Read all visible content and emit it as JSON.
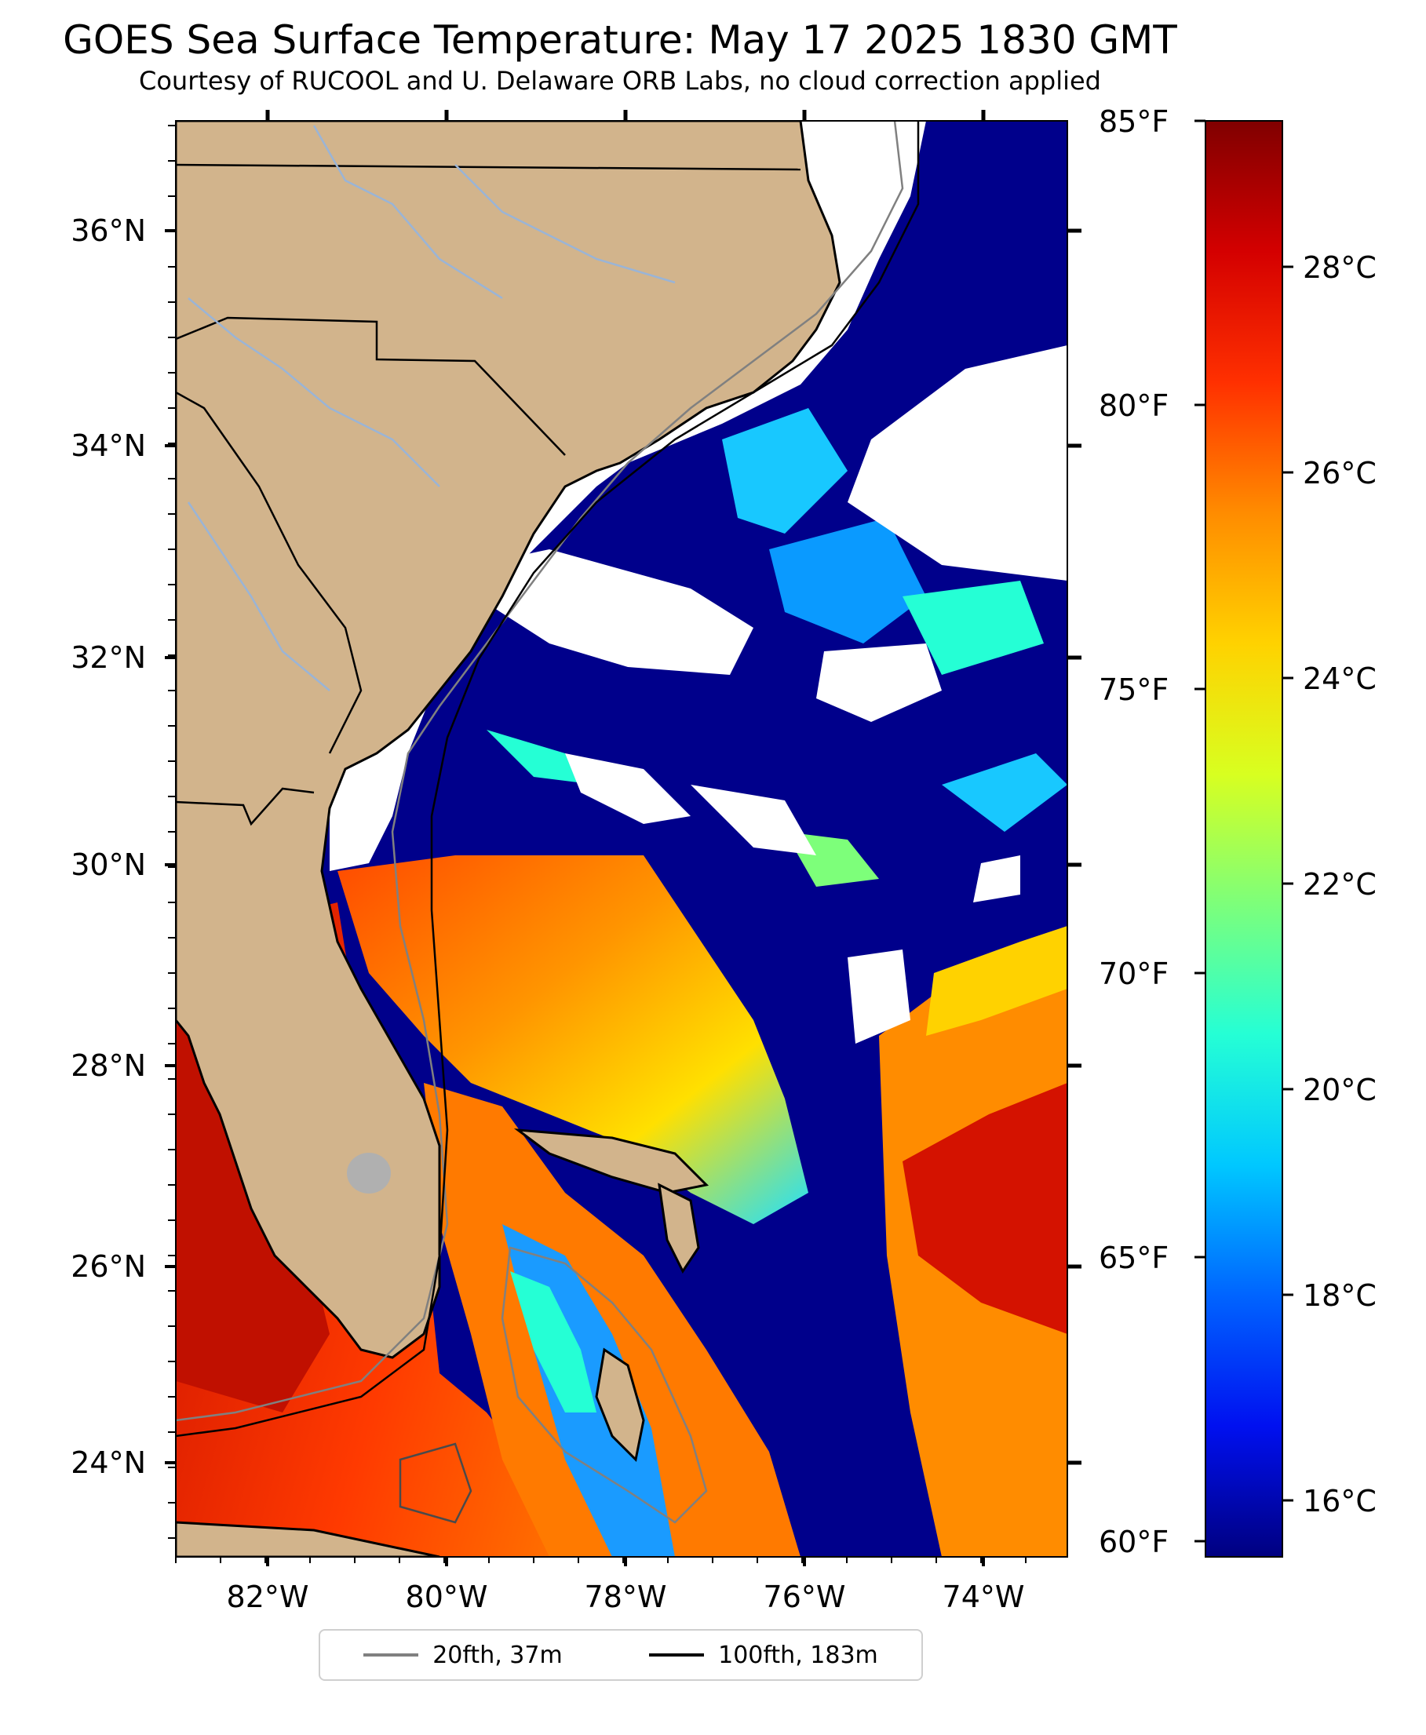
{
  "title": "GOES Sea Surface Temperature: May 17 2025 1830 GMT",
  "subtitle": "Courtesy of RUCOOL and U. Delaware ORB Labs, no cloud correction applied",
  "map": {
    "lon_ticks": [
      "82°W",
      "80°W",
      "78°W",
      "76°W",
      "74°W"
    ],
    "lat_ticks": [
      "36°N",
      "34°N",
      "32°N",
      "30°N",
      "28°N",
      "26°N",
      "24°N"
    ]
  },
  "colorbar": {
    "f_labels": [
      "85°F",
      "80°F",
      "75°F",
      "70°F",
      "65°F",
      "60°F"
    ],
    "c_labels": [
      "28°C",
      "26°C",
      "24°C",
      "22°C",
      "20°C",
      "18°C",
      "16°C"
    ],
    "colors": [
      "#800000",
      "#d40000",
      "#ff3000",
      "#ff8c00",
      "#ffd200",
      "#d8ff20",
      "#7dff7a",
      "#25ffd5",
      "#00c8ff",
      "#0064ff",
      "#0010f0",
      "#000080"
    ]
  },
  "legend": {
    "items": [
      {
        "label": "20fth, 37m",
        "color": "#808080"
      },
      {
        "label": "100fth, 183m",
        "color": "#000000"
      }
    ]
  },
  "colors": {
    "land": "#d2b48c",
    "cold_water": "#00008b",
    "cloud": "#ffffff",
    "warm_water": "#ff6a00",
    "hot_water": "#cc1100",
    "river": "#9ab4d6"
  }
}
